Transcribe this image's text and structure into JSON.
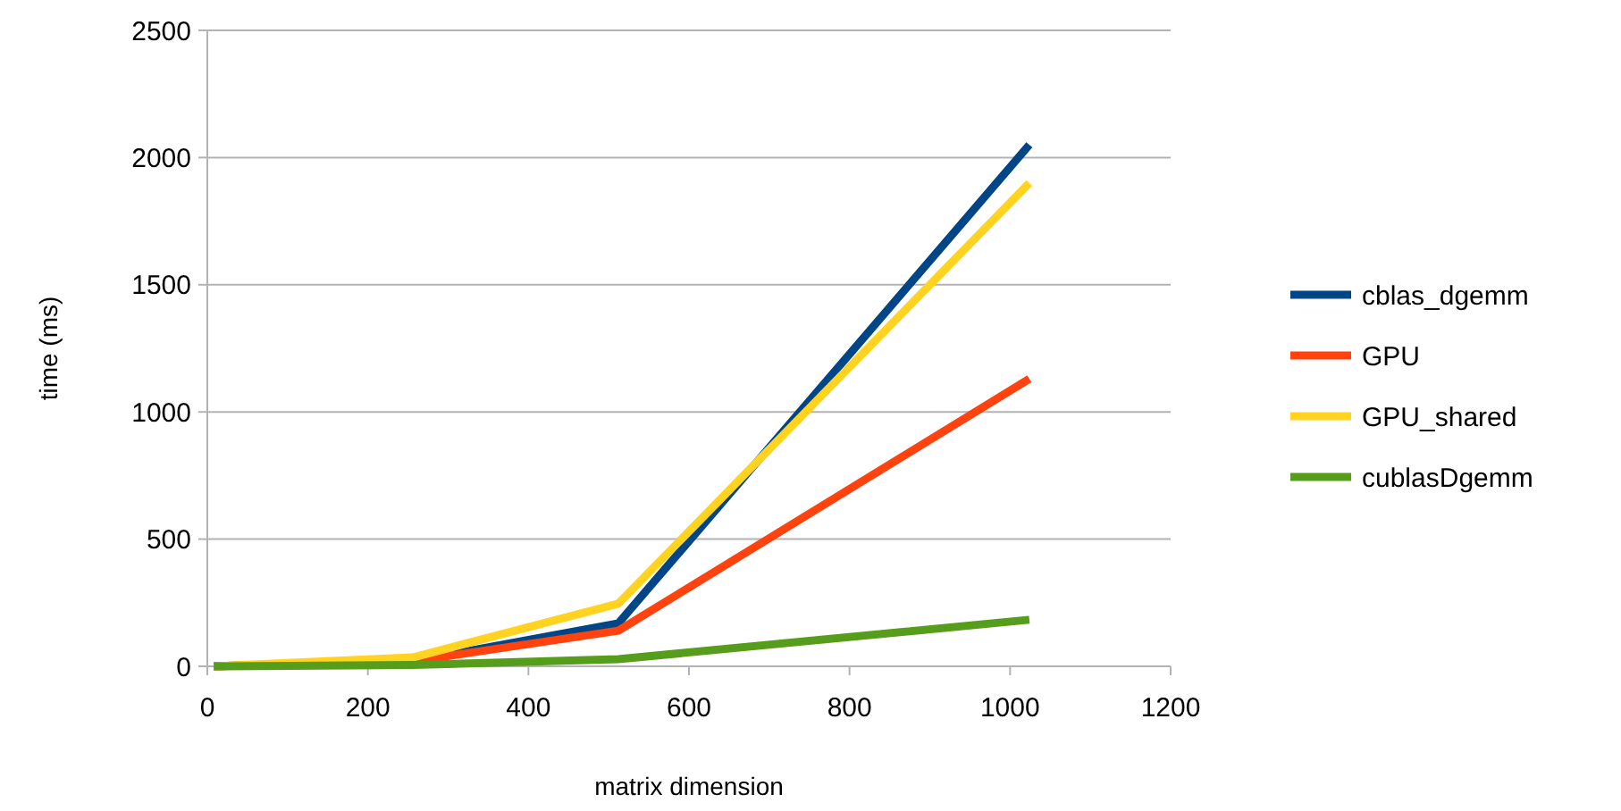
{
  "chart_data": {
    "type": "line",
    "xlabel": "matrix dimension",
    "ylabel": "time (ms)",
    "x": [
      8,
      256,
      512,
      1024
    ],
    "series": [
      {
        "name": "cblas_dgemm",
        "color": "#004586",
        "values": [
          0,
          20,
          169,
          2050
        ]
      },
      {
        "name": "GPU",
        "color": "#ff420e",
        "values": [
          0,
          20,
          140,
          1130
        ]
      },
      {
        "name": "GPU_shared",
        "color": "#ffd320",
        "values": [
          0,
          35,
          246,
          1900
        ]
      },
      {
        "name": "cublasDgemm",
        "color": "#579d1c",
        "values": [
          0,
          5,
          28,
          183
        ]
      }
    ],
    "xlim": [
      0,
      1200
    ],
    "xticks": [
      0,
      200,
      400,
      600,
      800,
      1000,
      1200
    ],
    "ylim": [
      0,
      2500
    ],
    "yticks": [
      0,
      500,
      1000,
      1500,
      2000,
      2500
    ],
    "grid": "y",
    "legend": "right",
    "marker": "none",
    "line_style": "solid"
  }
}
